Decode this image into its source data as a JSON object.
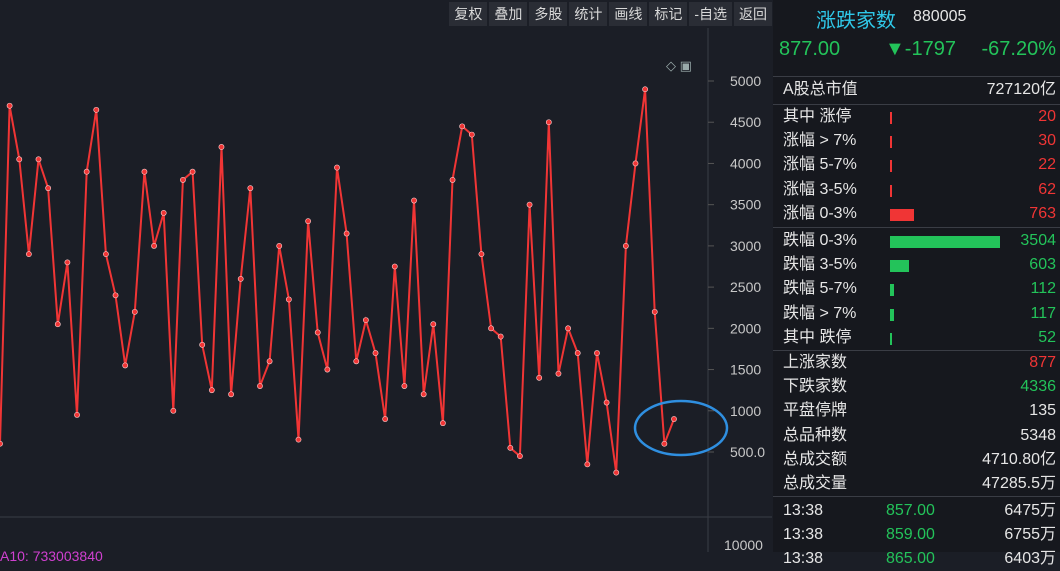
{
  "toolbar": {
    "buttons": [
      "复权",
      "叠加",
      "多股",
      "统计",
      "画线",
      "标记",
      "-自选",
      "返回"
    ]
  },
  "chart": {
    "y_ticks": [
      "5000",
      "4500",
      "4000",
      "3500",
      "3000",
      "2500",
      "2000",
      "1500",
      "1000",
      "500.0"
    ],
    "bottom_tick": "10000",
    "ma_label": "A10: 733003840",
    "line_color": "#f03535",
    "annotation_color": "#2f8fe0"
  },
  "chart_data": {
    "type": "line",
    "ylim": [
      0,
      5500
    ],
    "values": [
      600,
      4700,
      4050,
      2900,
      4050,
      3700,
      2050,
      2800,
      950,
      3900,
      4650,
      2900,
      2400,
      1550,
      2200,
      3900,
      3000,
      3400,
      1000,
      3800,
      3900,
      1800,
      1250,
      4200,
      1200,
      2600,
      3700,
      1300,
      1600,
      3000,
      2350,
      650,
      3300,
      1950,
      1500,
      3950,
      3150,
      1600,
      2100,
      1700,
      900,
      2750,
      1300,
      3550,
      1200,
      2050,
      850,
      3800,
      4450,
      4350,
      2900,
      2000,
      1900,
      550,
      450,
      3500,
      1400,
      4500,
      1450,
      2000,
      1700,
      350,
      1700,
      1100,
      250,
      3000,
      4000,
      4900,
      2200,
      600,
      900
    ]
  },
  "panel": {
    "title": "涨跌家数",
    "code": "880005",
    "price": "877.00",
    "change": "▼-1797",
    "percent": "-67.20%",
    "market_cap_label": "A股总市值",
    "market_cap_value": "727120亿",
    "up_rows": [
      {
        "label": "其中 涨停",
        "value": "20",
        "frac": 0.005
      },
      {
        "label": "涨幅 > 7%",
        "value": "30",
        "frac": 0.008
      },
      {
        "label": "涨幅 5-7%",
        "value": "22",
        "frac": 0.006
      },
      {
        "label": "涨幅 3-5%",
        "value": "62",
        "frac": 0.018
      },
      {
        "label": "涨幅 0-3%",
        "value": "763",
        "frac": 0.218
      }
    ],
    "down_rows": [
      {
        "label": "跌幅 0-3%",
        "value": "3504",
        "frac": 1.0
      },
      {
        "label": "跌幅 3-5%",
        "value": "603",
        "frac": 0.172
      },
      {
        "label": "跌幅 5-7%",
        "value": "112",
        "frac": 0.032
      },
      {
        "label": "跌幅 > 7%",
        "value": "117",
        "frac": 0.033
      },
      {
        "label": "其中 跌停",
        "value": "52",
        "frac": 0.015
      }
    ],
    "stats": [
      {
        "label": "上涨家数",
        "value": "877",
        "color": "red"
      },
      {
        "label": "下跌家数",
        "value": "4336",
        "color": "green"
      },
      {
        "label": "平盘停牌",
        "value": "135",
        "color": "white"
      },
      {
        "label": "总品种数",
        "value": "5348",
        "color": "white"
      },
      {
        "label": "总成交额",
        "value": "4710.80亿",
        "color": "white"
      },
      {
        "label": "总成交量",
        "value": "47285.5万",
        "color": "white"
      }
    ],
    "ticks": [
      {
        "time": "13:38",
        "price": "857.00",
        "vol": "6475万"
      },
      {
        "time": "13:38",
        "price": "859.00",
        "vol": "6755万"
      },
      {
        "time": "13:38",
        "price": "865.00",
        "vol": "6403万"
      }
    ]
  }
}
